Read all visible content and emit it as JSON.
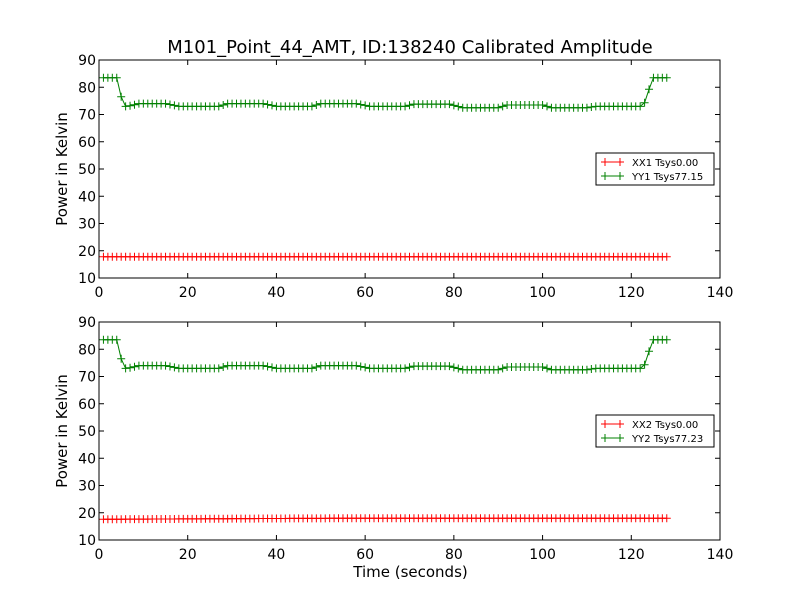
{
  "figure": {
    "title": "M101_Point_44_AMT, ID:138240 Calibrated Amplitude"
  },
  "chart_data": [
    {
      "type": "line",
      "ylabel": "Power in Kelvin",
      "xlabel": "",
      "xlim": [
        0,
        140
      ],
      "ylim": [
        10,
        90
      ],
      "xticks": [
        0,
        20,
        40,
        60,
        80,
        100,
        120,
        140
      ],
      "yticks": [
        10,
        20,
        30,
        40,
        50,
        60,
        70,
        80,
        90
      ],
      "grid": false,
      "legend": "center-right",
      "series": [
        {
          "name": "XX1 Tsys0.00",
          "color": "#ff0000",
          "marker": "plus",
          "profile": [
            [
              1,
              17.8
            ],
            [
              128,
              17.8
            ]
          ]
        },
        {
          "name": "YY1 Tsys77.15",
          "color": "#008000",
          "marker": "plus",
          "profile": [
            [
              1,
              83.5
            ],
            [
              4,
              83.5
            ],
            [
              5.5,
              73
            ],
            [
              6.5,
              73
            ],
            [
              9,
              74
            ],
            [
              15,
              74
            ],
            [
              18,
              73
            ],
            [
              27,
              73
            ],
            [
              29,
              74
            ],
            [
              37,
              74
            ],
            [
              40,
              73
            ],
            [
              48,
              73
            ],
            [
              50,
              74
            ],
            [
              58,
              74
            ],
            [
              61,
              73
            ],
            [
              69,
              73
            ],
            [
              71,
              73.8
            ],
            [
              79,
              73.8
            ],
            [
              82,
              72.5
            ],
            [
              90,
              72.5
            ],
            [
              92,
              73.5
            ],
            [
              100,
              73.5
            ],
            [
              102,
              72.5
            ],
            [
              110,
              72.5
            ],
            [
              112,
              73
            ],
            [
              122,
              73
            ],
            [
              123.5,
              75
            ],
            [
              124.5,
              83.5
            ],
            [
              128,
              83.5
            ]
          ]
        }
      ]
    },
    {
      "type": "line",
      "ylabel": "Power in Kelvin",
      "xlabel": "Time (seconds)",
      "xlim": [
        0,
        140
      ],
      "ylim": [
        10,
        90
      ],
      "xticks": [
        0,
        20,
        40,
        60,
        80,
        100,
        120,
        140
      ],
      "yticks": [
        10,
        20,
        30,
        40,
        50,
        60,
        70,
        80,
        90
      ],
      "grid": false,
      "legend": "center-right",
      "series": [
        {
          "name": "XX2 Tsys0.00",
          "color": "#ff0000",
          "marker": "plus",
          "profile": [
            [
              1,
              17.6
            ],
            [
              40,
              17.9
            ],
            [
              60,
              18
            ],
            [
              128,
              18
            ]
          ]
        },
        {
          "name": "YY2 Tsys77.23",
          "color": "#008000",
          "marker": "plus",
          "profile": [
            [
              1,
              83.5
            ],
            [
              4,
              83.5
            ],
            [
              5.5,
              73
            ],
            [
              6.5,
              73
            ],
            [
              9,
              74
            ],
            [
              15,
              74
            ],
            [
              18,
              73
            ],
            [
              27,
              73
            ],
            [
              29,
              74
            ],
            [
              37,
              74
            ],
            [
              40,
              73
            ],
            [
              48,
              73
            ],
            [
              50,
              74
            ],
            [
              58,
              74
            ],
            [
              61,
              73
            ],
            [
              69,
              73
            ],
            [
              71,
              73.8
            ],
            [
              79,
              73.8
            ],
            [
              82,
              72.5
            ],
            [
              90,
              72.5
            ],
            [
              92,
              73.5
            ],
            [
              100,
              73.5
            ],
            [
              102,
              72.5
            ],
            [
              110,
              72.5
            ],
            [
              112,
              73
            ],
            [
              122,
              73
            ],
            [
              123.5,
              75
            ],
            [
              124.5,
              83.5
            ],
            [
              128,
              83.5
            ]
          ]
        }
      ]
    }
  ]
}
